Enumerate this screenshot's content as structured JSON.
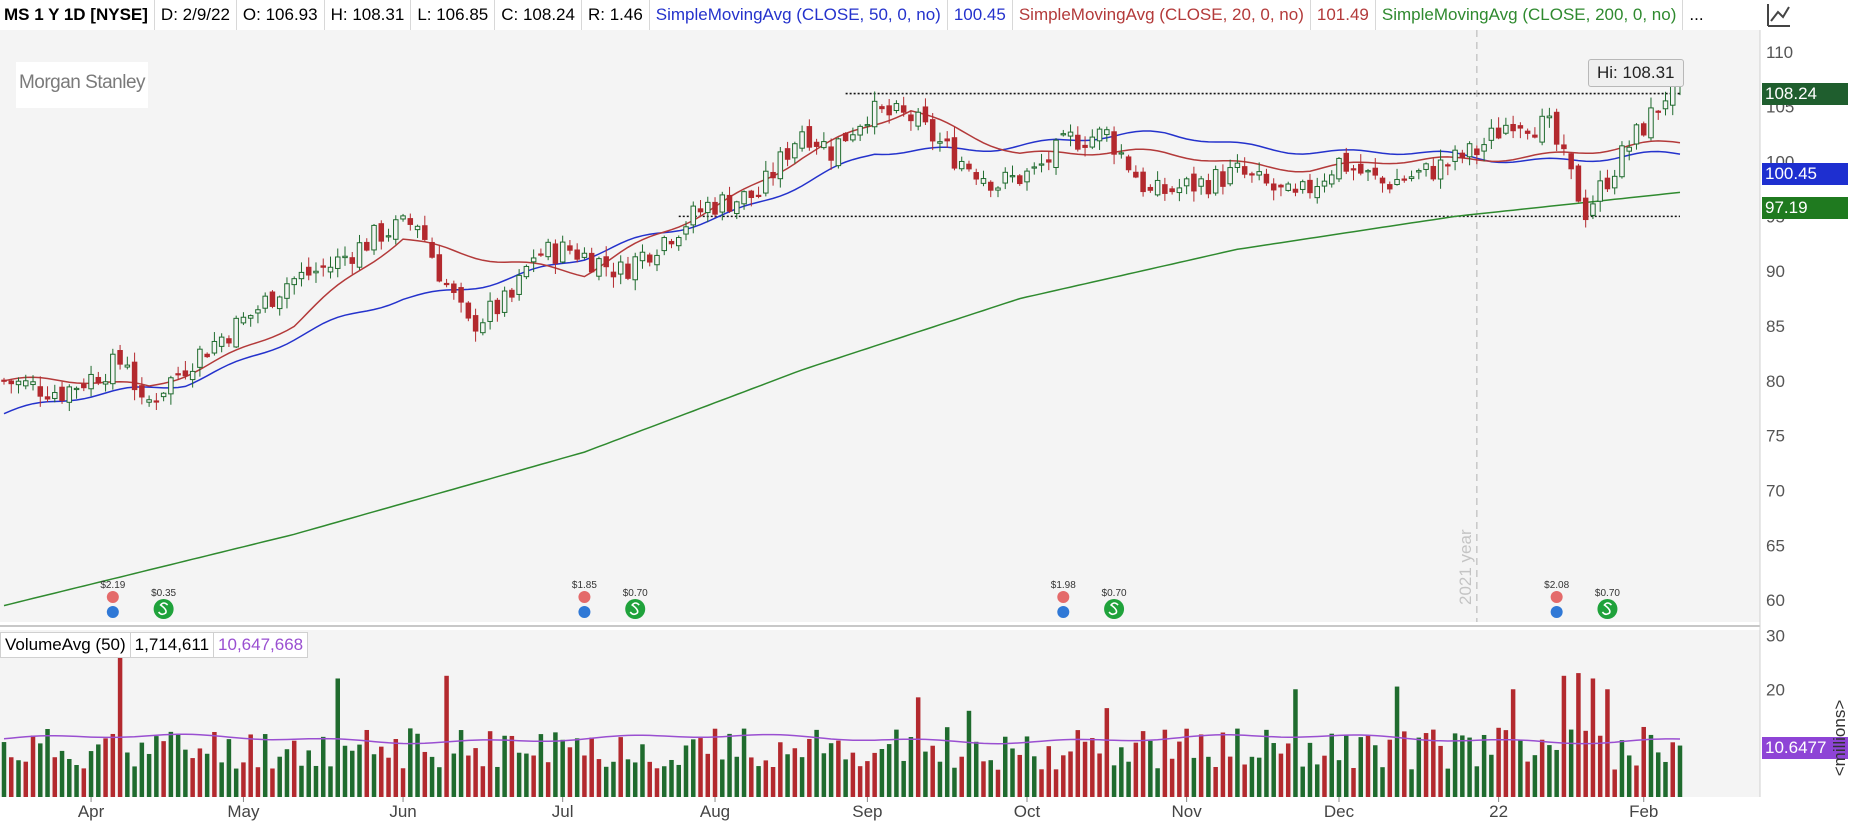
{
  "header": {
    "symbol": "MS 1 Y 1D [NYSE]",
    "date": "D: 2/9/22",
    "open": "O: 106.93",
    "high": "H: 108.31",
    "low": "L: 106.85",
    "close": "C: 108.24",
    "range": "R: 1.46",
    "sma50_label": "SimpleMovingAvg (CLOSE, 50, 0, no)",
    "sma50_value": "100.45",
    "sma20_label": "SimpleMovingAvg (CLOSE, 20, 0, no)",
    "sma20_value": "101.49",
    "sma200_label": "SimpleMovingAvg (CLOSE, 200, 0, no)",
    "more": "..."
  },
  "logo_text": "Morgan Stanley",
  "hi_callout": "Hi: 108.31",
  "price_tags": {
    "last": "108.24",
    "sma50": "100.45",
    "sma200": "97.19"
  },
  "year_marker": "2021 year",
  "volume_header": {
    "name": "VolumeAvg (50)",
    "volume": "1,714,611",
    "avg": "10,647,668"
  },
  "volume_tag": "10.6477",
  "volume_unit": "<millions>",
  "colors": {
    "up": "#1f6b2e",
    "down": "#b3292e",
    "sma50": "#2432cc",
    "sma20": "#b33a3a",
    "sma200": "#2f8a2f",
    "volavg": "#9a4fd1",
    "last_tag": "#1f5e2e",
    "sma50_tag": "#1e2fd0",
    "sma200_tag": "#1f7a1f",
    "vol_tag": "#8e44d6"
  },
  "chart_data": {
    "type": "candlestick",
    "x_ticks": [
      "Apr",
      "May",
      "Jun",
      "Jul",
      "Aug",
      "Sep",
      "Oct",
      "Nov",
      "Dec",
      "22",
      "Feb"
    ],
    "x_tick_days": [
      12,
      33,
      55,
      77,
      98,
      119,
      141,
      163,
      184,
      206,
      226
    ],
    "y_ticks": [
      60,
      65,
      70,
      75,
      80,
      85,
      90,
      95,
      100,
      105,
      110
    ],
    "ylim": [
      58,
      112
    ],
    "total_days": 232,
    "year_marker_day": 203,
    "support": 95.0,
    "resistance": 106.2,
    "level_lines_start_day": [
      93,
      116
    ],
    "price_keys": [
      [
        0,
        80
      ],
      [
        8,
        79
      ],
      [
        17,
        82
      ],
      [
        19,
        77.5
      ],
      [
        26,
        82
      ],
      [
        34,
        86
      ],
      [
        39,
        89
      ],
      [
        45,
        90.5
      ],
      [
        52,
        93.5
      ],
      [
        57,
        94.5
      ],
      [
        60,
        90
      ],
      [
        64,
        85
      ],
      [
        70,
        87.5
      ],
      [
        73,
        91.5
      ],
      [
        78,
        92
      ],
      [
        85,
        90
      ],
      [
        92,
        93.5
      ],
      [
        97,
        96
      ],
      [
        104,
        97
      ],
      [
        110,
        103
      ],
      [
        114,
        101
      ],
      [
        119,
        104.5
      ],
      [
        125,
        104
      ],
      [
        131,
        100.5
      ],
      [
        137,
        98
      ],
      [
        142,
        99
      ],
      [
        147,
        102
      ],
      [
        152,
        102.5
      ],
      [
        158,
        97
      ],
      [
        165,
        98
      ],
      [
        170,
        99
      ],
      [
        178,
        96.5
      ],
      [
        184,
        100
      ],
      [
        190,
        98
      ],
      [
        196,
        99
      ],
      [
        203,
        101
      ],
      [
        208,
        104
      ],
      [
        213,
        103
      ],
      [
        218,
        95.5
      ],
      [
        224,
        101.5
      ],
      [
        228,
        105
      ],
      [
        231,
        108.24
      ]
    ],
    "sma50_keys": [
      [
        0,
        77
      ],
      [
        25,
        80
      ],
      [
        55,
        87.5
      ],
      [
        80,
        91
      ],
      [
        100,
        95.5
      ],
      [
        120,
        100.5
      ],
      [
        145,
        102
      ],
      [
        160,
        102.3
      ],
      [
        185,
        100.8
      ],
      [
        205,
        100.3
      ],
      [
        231,
        100.45
      ]
    ],
    "sma20_keys": [
      [
        0,
        80
      ],
      [
        20,
        79.5
      ],
      [
        40,
        85
      ],
      [
        55,
        93
      ],
      [
        70,
        91
      ],
      [
        80,
        89.5
      ],
      [
        95,
        95
      ],
      [
        110,
        100.5
      ],
      [
        125,
        104.5
      ],
      [
        140,
        101
      ],
      [
        160,
        100.5
      ],
      [
        180,
        99.5
      ],
      [
        200,
        100
      ],
      [
        215,
        101
      ],
      [
        231,
        101.49
      ]
    ],
    "sma200_keys": [
      [
        0,
        59.5
      ],
      [
        40,
        66
      ],
      [
        80,
        73.5
      ],
      [
        110,
        81
      ],
      [
        140,
        87.5
      ],
      [
        170,
        92
      ],
      [
        200,
        95
      ],
      [
        231,
        97.19
      ]
    ],
    "dividend_events": [
      {
        "day": 15,
        "amount": "$2.19",
        "div": "$0.35"
      },
      {
        "day": 80,
        "amount": "$1.85",
        "div": "$0.70"
      },
      {
        "day": 146,
        "amount": "$1.98",
        "div": "$0.70"
      },
      {
        "day": 214,
        "amount": "$2.08",
        "div": "$0.70"
      }
    ],
    "volume": {
      "y_ticks": [
        10,
        20,
        30
      ],
      "ylim": [
        0,
        31
      ],
      "avg_last": 10.6477,
      "spikes": [
        [
          16,
          29.5
        ],
        [
          46,
          22
        ],
        [
          61,
          22.5
        ],
        [
          126,
          18.5
        ],
        [
          133,
          16
        ],
        [
          152,
          16.5
        ],
        [
          178,
          20
        ],
        [
          192,
          20.5
        ],
        [
          208,
          20
        ],
        [
          215,
          22.5
        ],
        [
          217,
          23
        ],
        [
          219,
          22
        ],
        [
          221,
          20
        ],
        [
          226,
          13
        ]
      ]
    }
  }
}
